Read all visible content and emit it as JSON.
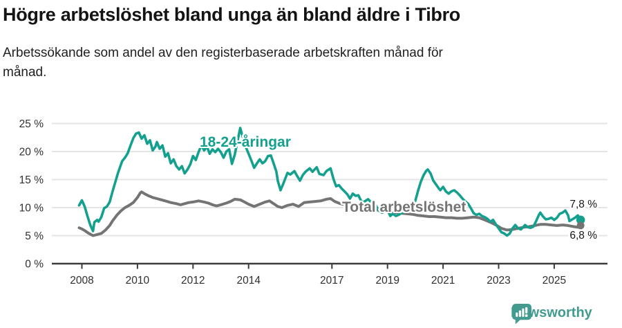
{
  "header": {
    "title": "Högre arbetslöshet bland unga än bland äldre i Tibro",
    "subtitle": "Arbetssökande som andel av den registerbaserade arbetskraften månad för månad."
  },
  "chart_data": {
    "type": "line",
    "title": "Högre arbetslöshet bland unga än bland äldre i Tibro",
    "caption": "Arbetssökande som andel av den registerbaserade arbetskraften månad för månad.",
    "xlabel": "",
    "ylabel": "",
    "ylim": [
      0,
      25
    ],
    "xlim": [
      2007.9,
      2026.0
    ],
    "grid": "horizontal",
    "legend_position": "inline-labels",
    "y_ticks": [
      {
        "value": 0,
        "label": "0 %"
      },
      {
        "value": 5,
        "label": "5 %"
      },
      {
        "value": 10,
        "label": "10 %"
      },
      {
        "value": 15,
        "label": "15 %"
      },
      {
        "value": 20,
        "label": "20 %"
      },
      {
        "value": 25,
        "label": "25 %"
      }
    ],
    "x_ticks": [
      {
        "value": 2008,
        "label": "2008"
      },
      {
        "value": 2010,
        "label": "2010"
      },
      {
        "value": 2012,
        "label": "2012"
      },
      {
        "value": 2014,
        "label": "2014"
      },
      {
        "value": 2017,
        "label": "2017"
      },
      {
        "value": 2019,
        "label": "2019"
      },
      {
        "value": 2021,
        "label": "2021"
      },
      {
        "value": 2023,
        "label": "2023"
      },
      {
        "value": 2025,
        "label": "2025"
      }
    ],
    "series": [
      {
        "name": "18-24-åringar",
        "color": "#13A08E",
        "end_label": "7,8 %",
        "end_value": 7.8,
        "points": [
          [
            2007.9,
            10.4
          ],
          [
            2008.0,
            11.3
          ],
          [
            2008.1,
            10.2
          ],
          [
            2008.2,
            8.5
          ],
          [
            2008.3,
            6.9
          ],
          [
            2008.4,
            5.8
          ],
          [
            2008.45,
            7.4
          ],
          [
            2008.55,
            7.8
          ],
          [
            2008.6,
            7.5
          ],
          [
            2008.7,
            8.3
          ],
          [
            2008.8,
            9.9
          ],
          [
            2008.9,
            10.2
          ],
          [
            2009.0,
            11.0
          ],
          [
            2009.1,
            12.8
          ],
          [
            2009.2,
            14.5
          ],
          [
            2009.3,
            16.2
          ],
          [
            2009.4,
            17.6
          ],
          [
            2009.45,
            18.3
          ],
          [
            2009.55,
            18.9
          ],
          [
            2009.65,
            19.7
          ],
          [
            2009.75,
            21.1
          ],
          [
            2009.85,
            22.4
          ],
          [
            2009.95,
            23.2
          ],
          [
            2010.05,
            23.4
          ],
          [
            2010.15,
            22.3
          ],
          [
            2010.25,
            22.9
          ],
          [
            2010.35,
            21.4
          ],
          [
            2010.45,
            22.0
          ],
          [
            2010.55,
            20.2
          ],
          [
            2010.65,
            20.9
          ],
          [
            2010.7,
            21.7
          ],
          [
            2010.8,
            20.5
          ],
          [
            2010.9,
            21.1
          ],
          [
            2011.0,
            19.1
          ],
          [
            2011.1,
            19.7
          ],
          [
            2011.2,
            17.9
          ],
          [
            2011.3,
            18.6
          ],
          [
            2011.4,
            17.4
          ],
          [
            2011.5,
            16.8
          ],
          [
            2011.6,
            17.4
          ],
          [
            2011.7,
            16.1
          ],
          [
            2011.8,
            16.8
          ],
          [
            2011.9,
            17.7
          ],
          [
            2012.0,
            19.2
          ],
          [
            2012.1,
            18.5
          ],
          [
            2012.2,
            19.9
          ],
          [
            2012.3,
            21.1
          ],
          [
            2012.4,
            20.2
          ],
          [
            2012.5,
            20.9
          ],
          [
            2012.6,
            19.6
          ],
          [
            2012.7,
            20.4
          ],
          [
            2012.8,
            19.9
          ],
          [
            2012.9,
            20.5
          ],
          [
            2013.0,
            19.9
          ],
          [
            2013.1,
            18.9
          ],
          [
            2013.2,
            20.0
          ],
          [
            2013.3,
            20.4
          ],
          [
            2013.4,
            17.8
          ],
          [
            2013.5,
            19.4
          ],
          [
            2013.6,
            21.8
          ],
          [
            2013.7,
            24.2
          ],
          [
            2013.8,
            22.4
          ],
          [
            2013.9,
            20.8
          ],
          [
            2014.0,
            19.6
          ],
          [
            2014.1,
            18.4
          ],
          [
            2014.2,
            17.1
          ],
          [
            2014.3,
            17.9
          ],
          [
            2014.4,
            18.6
          ],
          [
            2014.5,
            17.9
          ],
          [
            2014.6,
            18.3
          ],
          [
            2014.7,
            19.2
          ],
          [
            2014.8,
            19.3
          ],
          [
            2014.9,
            17.9
          ],
          [
            2015.0,
            16.4
          ],
          [
            2015.05,
            14.8
          ],
          [
            2015.15,
            13.1
          ],
          [
            2015.25,
            14.3
          ],
          [
            2015.4,
            16.2
          ],
          [
            2015.5,
            15.9
          ],
          [
            2015.65,
            16.5
          ],
          [
            2015.75,
            15.6
          ],
          [
            2015.85,
            14.8
          ],
          [
            2015.95,
            15.8
          ],
          [
            2016.05,
            16.4
          ],
          [
            2016.2,
            17.0
          ],
          [
            2016.3,
            16.4
          ],
          [
            2016.45,
            17.2
          ],
          [
            2016.55,
            16.0
          ],
          [
            2016.7,
            15.8
          ],
          [
            2016.8,
            16.5
          ],
          [
            2016.95,
            17.0
          ],
          [
            2017.05,
            15.2
          ],
          [
            2017.15,
            13.8
          ],
          [
            2017.25,
            14.0
          ],
          [
            2017.35,
            13.4
          ],
          [
            2017.45,
            12.9
          ],
          [
            2017.55,
            12.4
          ],
          [
            2017.65,
            11.6
          ],
          [
            2017.75,
            12.5
          ],
          [
            2017.85,
            12.1
          ],
          [
            2017.95,
            12.2
          ],
          [
            2018.05,
            11.2
          ],
          [
            2018.15,
            11.0
          ],
          [
            2018.3,
            11.5
          ],
          [
            2018.4,
            11.0
          ],
          [
            2018.5,
            11.2
          ],
          [
            2018.6,
            10.2
          ],
          [
            2018.7,
            9.4
          ],
          [
            2018.8,
            9.1
          ],
          [
            2018.9,
            9.3
          ],
          [
            2019.0,
            9.6
          ],
          [
            2019.1,
            8.5
          ],
          [
            2019.2,
            8.9
          ],
          [
            2019.3,
            8.5
          ],
          [
            2019.4,
            8.7
          ],
          [
            2019.5,
            9.0
          ],
          [
            2019.6,
            9.3
          ],
          [
            2019.7,
            9.7
          ],
          [
            2019.8,
            10.1
          ],
          [
            2019.9,
            10.5
          ],
          [
            2020.0,
            11.2
          ],
          [
            2020.1,
            13.0
          ],
          [
            2020.2,
            14.6
          ],
          [
            2020.3,
            15.8
          ],
          [
            2020.4,
            16.6
          ],
          [
            2020.45,
            16.8
          ],
          [
            2020.55,
            16.1
          ],
          [
            2020.65,
            14.8
          ],
          [
            2020.75,
            14.1
          ],
          [
            2020.85,
            13.4
          ],
          [
            2020.9,
            13.1
          ],
          [
            2021.0,
            13.7
          ],
          [
            2021.1,
            12.9
          ],
          [
            2021.2,
            12.5
          ],
          [
            2021.3,
            12.9
          ],
          [
            2021.4,
            13.1
          ],
          [
            2021.5,
            12.7
          ],
          [
            2021.6,
            12.2
          ],
          [
            2021.7,
            11.6
          ],
          [
            2021.8,
            11.1
          ],
          [
            2021.9,
            10.7
          ],
          [
            2022.0,
            9.9
          ],
          [
            2022.1,
            9.0
          ],
          [
            2022.2,
            8.7
          ],
          [
            2022.3,
            8.9
          ],
          [
            2022.4,
            8.5
          ],
          [
            2022.5,
            8.3
          ],
          [
            2022.6,
            8.0
          ],
          [
            2022.7,
            7.5
          ],
          [
            2022.8,
            7.8
          ],
          [
            2022.9,
            7.0
          ],
          [
            2023.0,
            6.3
          ],
          [
            2023.1,
            5.6
          ],
          [
            2023.2,
            5.4
          ],
          [
            2023.3,
            5.0
          ],
          [
            2023.4,
            5.4
          ],
          [
            2023.5,
            6.3
          ],
          [
            2023.6,
            6.9
          ],
          [
            2023.7,
            6.3
          ],
          [
            2023.8,
            6.1
          ],
          [
            2023.9,
            6.6
          ],
          [
            2023.95,
            6.9
          ],
          [
            2024.05,
            6.5
          ],
          [
            2024.15,
            6.4
          ],
          [
            2024.25,
            6.6
          ],
          [
            2024.35,
            7.6
          ],
          [
            2024.45,
            8.7
          ],
          [
            2024.5,
            9.1
          ],
          [
            2024.6,
            8.4
          ],
          [
            2024.7,
            7.9
          ],
          [
            2024.8,
            8.0
          ],
          [
            2024.9,
            8.2
          ],
          [
            2025.0,
            7.8
          ],
          [
            2025.1,
            8.2
          ],
          [
            2025.2,
            8.9
          ],
          [
            2025.3,
            9.1
          ],
          [
            2025.4,
            9.5
          ],
          [
            2025.5,
            8.6
          ],
          [
            2025.55,
            7.6
          ],
          [
            2025.65,
            7.9
          ],
          [
            2025.75,
            8.2
          ],
          [
            2025.85,
            8.6
          ],
          [
            2025.95,
            7.8
          ]
        ]
      },
      {
        "name": "Total arbetslöshet",
        "color": "#747474",
        "end_label": "6,8 %",
        "end_value": 6.8,
        "points": [
          [
            2007.9,
            6.4
          ],
          [
            2008.0,
            6.2
          ],
          [
            2008.1,
            5.9
          ],
          [
            2008.25,
            5.4
          ],
          [
            2008.4,
            5.0
          ],
          [
            2008.55,
            5.2
          ],
          [
            2008.7,
            5.4
          ],
          [
            2008.85,
            6.0
          ],
          [
            2009.0,
            6.8
          ],
          [
            2009.1,
            7.6
          ],
          [
            2009.25,
            8.6
          ],
          [
            2009.4,
            9.4
          ],
          [
            2009.55,
            10.0
          ],
          [
            2009.7,
            10.4
          ],
          [
            2009.85,
            10.9
          ],
          [
            2010.0,
            11.8
          ],
          [
            2010.1,
            12.6
          ],
          [
            2010.15,
            12.8
          ],
          [
            2010.25,
            12.5
          ],
          [
            2010.4,
            12.1
          ],
          [
            2010.55,
            11.8
          ],
          [
            2010.7,
            11.6
          ],
          [
            2010.85,
            11.4
          ],
          [
            2011.0,
            11.2
          ],
          [
            2011.2,
            10.9
          ],
          [
            2011.4,
            10.7
          ],
          [
            2011.55,
            10.5
          ],
          [
            2011.7,
            10.7
          ],
          [
            2011.85,
            10.9
          ],
          [
            2012.0,
            11.0
          ],
          [
            2012.2,
            11.2
          ],
          [
            2012.4,
            11.0
          ],
          [
            2012.55,
            10.8
          ],
          [
            2012.7,
            10.5
          ],
          [
            2012.85,
            10.3
          ],
          [
            2013.0,
            10.5
          ],
          [
            2013.2,
            10.8
          ],
          [
            2013.35,
            11.1
          ],
          [
            2013.5,
            11.5
          ],
          [
            2013.7,
            11.4
          ],
          [
            2013.85,
            11.0
          ],
          [
            2014.0,
            10.6
          ],
          [
            2014.2,
            10.2
          ],
          [
            2014.4,
            10.6
          ],
          [
            2014.6,
            11.0
          ],
          [
            2014.75,
            11.2
          ],
          [
            2014.9,
            10.7
          ],
          [
            2015.05,
            10.2
          ],
          [
            2015.2,
            10.0
          ],
          [
            2015.4,
            10.4
          ],
          [
            2015.6,
            10.6
          ],
          [
            2015.8,
            10.2
          ],
          [
            2016.0,
            10.9
          ],
          [
            2016.2,
            11.0
          ],
          [
            2016.4,
            11.1
          ],
          [
            2016.6,
            11.2
          ],
          [
            2016.8,
            11.5
          ],
          [
            2016.95,
            11.6
          ],
          [
            2017.1,
            11.1
          ],
          [
            2017.3,
            10.7
          ],
          [
            2017.5,
            10.5
          ],
          [
            2017.7,
            10.4
          ],
          [
            2017.9,
            10.2
          ],
          [
            2018.1,
            10.0
          ],
          [
            2018.3,
            9.9
          ],
          [
            2018.5,
            9.7
          ],
          [
            2018.7,
            9.5
          ],
          [
            2018.9,
            9.3
          ],
          [
            2019.1,
            9.2
          ],
          [
            2019.3,
            9.1
          ],
          [
            2019.5,
            9.0
          ],
          [
            2019.7,
            8.9
          ],
          [
            2019.9,
            8.8
          ],
          [
            2020.1,
            8.6
          ],
          [
            2020.3,
            8.5
          ],
          [
            2020.5,
            8.4
          ],
          [
            2020.7,
            8.4
          ],
          [
            2020.9,
            8.3
          ],
          [
            2021.1,
            8.2
          ],
          [
            2021.3,
            8.2
          ],
          [
            2021.5,
            8.1
          ],
          [
            2021.7,
            8.1
          ],
          [
            2021.9,
            8.2
          ],
          [
            2022.1,
            8.3
          ],
          [
            2022.3,
            8.2
          ],
          [
            2022.5,
            7.8
          ],
          [
            2022.7,
            7.4
          ],
          [
            2022.9,
            6.9
          ],
          [
            2023.1,
            6.3
          ],
          [
            2023.3,
            6.0
          ],
          [
            2023.5,
            6.1
          ],
          [
            2023.7,
            6.3
          ],
          [
            2023.9,
            6.5
          ],
          [
            2024.1,
            6.6
          ],
          [
            2024.3,
            6.8
          ],
          [
            2024.5,
            7.0
          ],
          [
            2024.7,
            7.0
          ],
          [
            2024.9,
            6.9
          ],
          [
            2025.1,
            6.8
          ],
          [
            2025.3,
            6.9
          ],
          [
            2025.5,
            6.8
          ],
          [
            2025.7,
            6.6
          ],
          [
            2025.85,
            6.5
          ],
          [
            2025.95,
            6.8
          ]
        ]
      }
    ]
  },
  "colors": {
    "young_line": "#13A08E",
    "total_line": "#747474",
    "gridline": "#E4E4E4",
    "axis": "#3B3B3B",
    "tick_text": "#2F2F2F",
    "brand_teal": "#429B8E"
  },
  "footer": {
    "brand": "Newsworthy",
    "logo_icon": "bar-chart-speech-bubble-icon"
  }
}
